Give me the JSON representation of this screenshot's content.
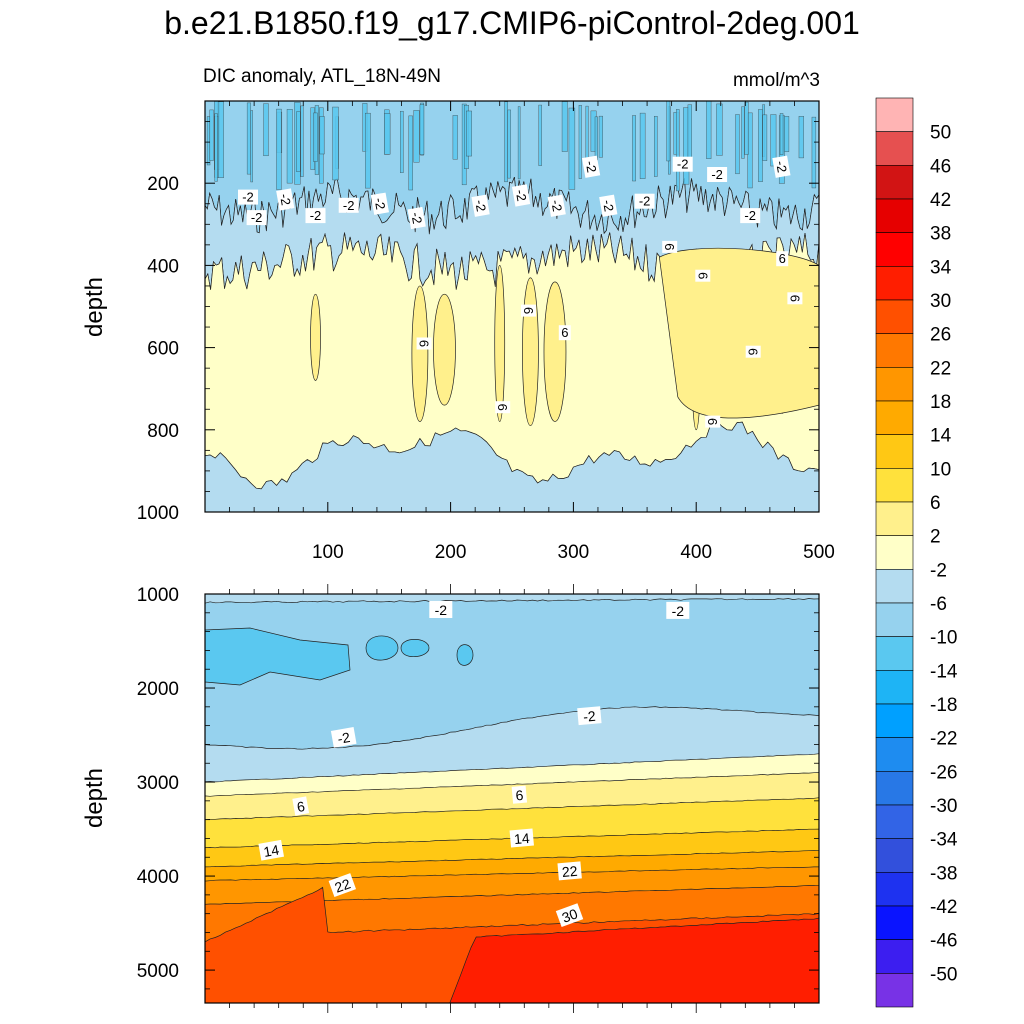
{
  "chart_data": {
    "type": "contour",
    "title": "b.e21.B1850.f19_g17.CMIP6-piControl-2deg.001",
    "subtitle_left": "DIC anomaly, ATL_18N-49N",
    "units": "mmol/m^3",
    "colorbar": {
      "levels": [
        50,
        46,
        42,
        38,
        34,
        30,
        26,
        22,
        18,
        14,
        10,
        6,
        2,
        -2,
        -6,
        -10,
        -14,
        -18,
        -22,
        -26,
        -30,
        -34,
        -38,
        -42,
        -46,
        -50
      ],
      "labels": [
        "50",
        "46",
        "42",
        "38",
        "34",
        "30",
        "26",
        "22",
        "18",
        "14",
        "10",
        "6",
        "2",
        "-2",
        "-6",
        "-10",
        "-14",
        "-18",
        "-22",
        "-26",
        "-30",
        "-34",
        "-38",
        "-42",
        "-46",
        "-50"
      ],
      "colors": [
        "#ffb4b4",
        "#e65050",
        "#d21414",
        "#e60000",
        "#ff0000",
        "#ff1e00",
        "#ff5000",
        "#ff7800",
        "#ff9600",
        "#ffaa00",
        "#ffc814",
        "#ffe13c",
        "#fff08c",
        "#ffffc8",
        "#b4dcf0",
        "#96d2ee",
        "#5ac8f0",
        "#1eb4f5",
        "#00a0ff",
        "#1e8cf0",
        "#2878e6",
        "#3264e6",
        "#3250dc",
        "#1e32f0",
        "#0a14ff",
        "#3c1ef0",
        "#7832e6"
      ]
    },
    "panels": [
      {
        "name": "upper",
        "xlim": [
          0,
          500
        ],
        "ylim": [
          1000,
          0
        ],
        "x_ticks": [
          "100",
          "200",
          "300",
          "400",
          "500"
        ],
        "y_ticks": [
          "200",
          "400",
          "600",
          "800",
          "1000"
        ],
        "ylabel": "depth",
        "bands": [
          {
            "level": -6,
            "top_depth": 0,
            "bottom_depth": 270
          },
          {
            "level": -2,
            "top_depth": 270,
            "bottom_depth": 400
          },
          {
            "level": 2,
            "top_depth": 400,
            "bottom_depth": 860
          },
          {
            "level": -2,
            "top_depth": 860,
            "bottom_depth": 1000
          }
        ],
        "cores": [
          {
            "x": 90,
            "top_depth": 470,
            "bottom_depth": 680
          },
          {
            "x": 175,
            "top_depth": 450,
            "bottom_depth": 780
          },
          {
            "x": 195,
            "top_depth": 470,
            "bottom_depth": 740
          },
          {
            "x": 240,
            "top_depth": 400,
            "bottom_depth": 780
          },
          {
            "x": 265,
            "top_depth": 430,
            "bottom_depth": 790
          },
          {
            "x": 285,
            "top_depth": 440,
            "bottom_depth": 780
          },
          {
            "x": 400,
            "top_depth": 360,
            "bottom_depth": 800
          },
          {
            "x": 470,
            "top_depth": 400,
            "bottom_depth": 760
          }
        ],
        "contour_labels": [
          {
            "x": 35,
            "depth": 235,
            "text": "-2",
            "angle": 0
          },
          {
            "x": 65,
            "depth": 240,
            "text": "-2",
            "angle": 80
          },
          {
            "x": 42,
            "depth": 285,
            "text": "-2",
            "angle": 0
          },
          {
            "x": 90,
            "depth": 280,
            "text": "-2",
            "angle": 0
          },
          {
            "x": 117,
            "depth": 255,
            "text": "-2",
            "angle": 0
          },
          {
            "x": 142,
            "depth": 250,
            "text": "-2",
            "angle": 80
          },
          {
            "x": 172,
            "depth": 285,
            "text": "-2",
            "angle": 80
          },
          {
            "x": 224,
            "depth": 255,
            "text": "-2",
            "angle": 80
          },
          {
            "x": 257,
            "depth": 230,
            "text": "-2",
            "angle": 80
          },
          {
            "x": 286,
            "depth": 255,
            "text": "-2",
            "angle": 80
          },
          {
            "x": 314,
            "depth": 160,
            "text": "-2",
            "angle": 80
          },
          {
            "x": 328,
            "depth": 255,
            "text": "-2",
            "angle": 80
          },
          {
            "x": 358,
            "depth": 245,
            "text": "-2",
            "angle": 0
          },
          {
            "x": 389,
            "depth": 155,
            "text": "-2",
            "angle": 0
          },
          {
            "x": 417,
            "depth": 180,
            "text": "-2",
            "angle": 0
          },
          {
            "x": 444,
            "depth": 280,
            "text": "-2",
            "angle": 0
          },
          {
            "x": 469,
            "depth": 160,
            "text": "-2",
            "angle": 80
          },
          {
            "x": 178,
            "depth": 590,
            "text": "6",
            "angle": 90
          },
          {
            "x": 263,
            "depth": 510,
            "text": "6",
            "angle": 90
          },
          {
            "x": 242,
            "depth": 745,
            "text": "6",
            "angle": 90
          },
          {
            "x": 293,
            "depth": 565,
            "text": "6",
            "angle": 0
          },
          {
            "x": 378,
            "depth": 355,
            "text": "6",
            "angle": 90
          },
          {
            "x": 405,
            "depth": 425,
            "text": "6",
            "angle": 90
          },
          {
            "x": 470,
            "depth": 385,
            "text": "6",
            "angle": 0
          },
          {
            "x": 480,
            "depth": 480,
            "text": "6",
            "angle": 90
          },
          {
            "x": 446,
            "depth": 610,
            "text": "6",
            "angle": 90
          },
          {
            "x": 413,
            "depth": 780,
            "text": "6",
            "angle": 90
          }
        ]
      },
      {
        "name": "lower",
        "xlim": [
          0,
          500
        ],
        "ylim": [
          5350,
          1000
        ],
        "y_ticks": [
          "1000",
          "2000",
          "3000",
          "4000",
          "5000"
        ],
        "ylabel": "depth",
        "contour_labels": [
          {
            "x": 192,
            "depth": 1170,
            "text": "-2",
            "angle": 0
          },
          {
            "x": 385,
            "depth": 1180,
            "text": "-2",
            "angle": 0
          },
          {
            "x": 113,
            "depth": 2530,
            "text": "-2",
            "angle": -10
          },
          {
            "x": 313,
            "depth": 2300,
            "text": "-2",
            "angle": -5
          },
          {
            "x": 78,
            "depth": 3260,
            "text": "6",
            "angle": -10
          },
          {
            "x": 256,
            "depth": 3140,
            "text": "6",
            "angle": -5
          },
          {
            "x": 54,
            "depth": 3730,
            "text": "14",
            "angle": -10
          },
          {
            "x": 258,
            "depth": 3600,
            "text": "14",
            "angle": -5
          },
          {
            "x": 112,
            "depth": 4100,
            "text": "22",
            "angle": -20
          },
          {
            "x": 297,
            "depth": 3950,
            "text": "22",
            "angle": -5
          },
          {
            "x": 297,
            "depth": 4420,
            "text": "30",
            "angle": -20
          }
        ]
      }
    ]
  }
}
